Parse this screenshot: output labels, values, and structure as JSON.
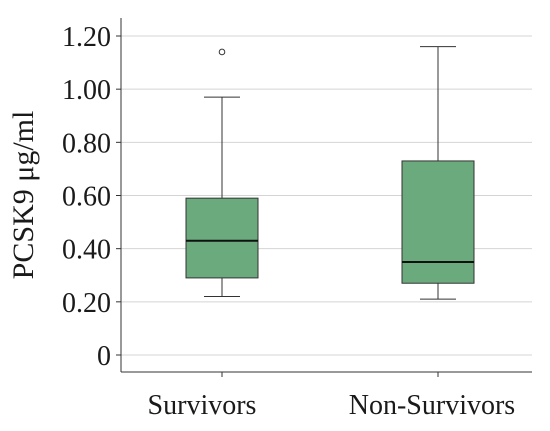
{
  "chart_data": {
    "type": "box",
    "ylabel": "PCSK9 μg/ml",
    "xlabel": "",
    "ylim": [
      -0.05,
      1.26
    ],
    "yticks": [
      0,
      0.2,
      0.4,
      0.6,
      0.8,
      1.0,
      1.2
    ],
    "ytick_labels": [
      "0",
      "0.20",
      "0.40",
      "0.60",
      "0.80",
      "1.00",
      "1.20"
    ],
    "grid": "horizontal",
    "box_color": "#6aaa7c",
    "categories": [
      "Survivors",
      "Non-Survivors"
    ],
    "boxes": [
      {
        "category": "Survivors",
        "whisker_low": 0.22,
        "q1": 0.29,
        "median": 0.43,
        "q3": 0.59,
        "whisker_high": 0.97,
        "outliers": [
          1.14
        ]
      },
      {
        "category": "Non-Survivors",
        "whisker_low": 0.21,
        "q1": 0.27,
        "median": 0.35,
        "q3": 0.73,
        "whisker_high": 1.16,
        "outliers": []
      }
    ]
  }
}
